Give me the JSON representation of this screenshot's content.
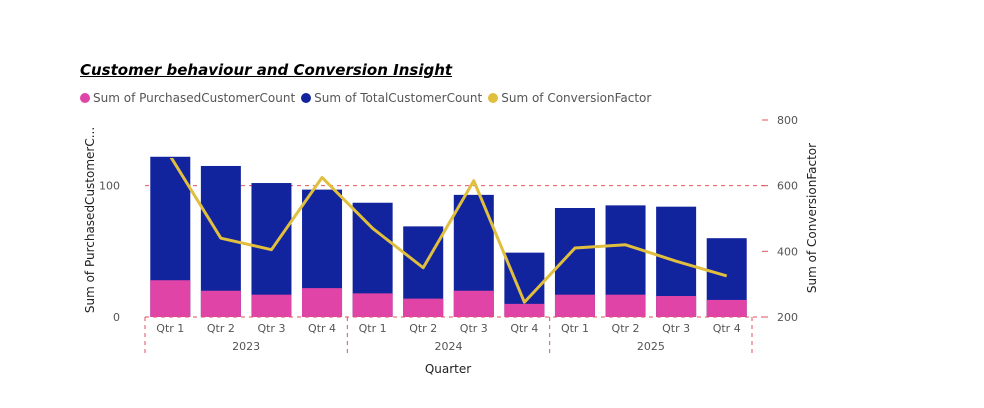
{
  "title": "Customer behaviour and Conversion Insight",
  "legend": [
    {
      "label": "Sum of PurchasedCustomerCount",
      "color": "#E044A7"
    },
    {
      "label": "Sum of TotalCustomerCount",
      "color": "#12239E"
    },
    {
      "label": "Sum of ConversionFactor",
      "color": "#E0BE3E"
    }
  ],
  "chart_data": {
    "type": "bar",
    "title": "Customer behaviour and Conversion Insight",
    "xlabel": "Quarter",
    "ylabel": "Sum of PurchasedCustomerC...",
    "y2label": "Sum of ConversionFactor",
    "categories": [
      "Qtr 1",
      "Qtr 2",
      "Qtr 3",
      "Qtr 4",
      "Qtr 1",
      "Qtr 2",
      "Qtr 3",
      "Qtr 4",
      "Qtr 1",
      "Qtr 2",
      "Qtr 3",
      "Qtr 4"
    ],
    "groups": [
      {
        "label": "2023",
        "count": 4
      },
      {
        "label": "2024",
        "count": 4
      },
      {
        "label": "2025",
        "count": 4
      }
    ],
    "series": [
      {
        "name": "Sum of TotalCustomerCount",
        "type": "bar",
        "axis": "left",
        "color": "#12239E",
        "values": [
          122,
          115,
          102,
          97,
          87,
          69,
          93,
          49,
          83,
          85,
          84,
          60
        ]
      },
      {
        "name": "Sum of PurchasedCustomerCount",
        "type": "bar",
        "axis": "left",
        "color": "#E044A7",
        "values": [
          28,
          20,
          17,
          22,
          18,
          14,
          20,
          10,
          17,
          17,
          16,
          13
        ]
      },
      {
        "name": "Sum of ConversionFactor",
        "type": "line",
        "axis": "right",
        "color": "#E0BE3E",
        "values": [
          690,
          440,
          405,
          625,
          470,
          350,
          615,
          245,
          410,
          420,
          370,
          325
        ]
      }
    ],
    "ylim": [
      0,
      150
    ],
    "yticks": [
      0,
      100
    ],
    "y2lim": [
      200,
      800
    ],
    "y2ticks": [
      200,
      400,
      600,
      800
    ],
    "reference_line": {
      "axis": "left",
      "value": 100,
      "color": "#E0525E"
    }
  }
}
